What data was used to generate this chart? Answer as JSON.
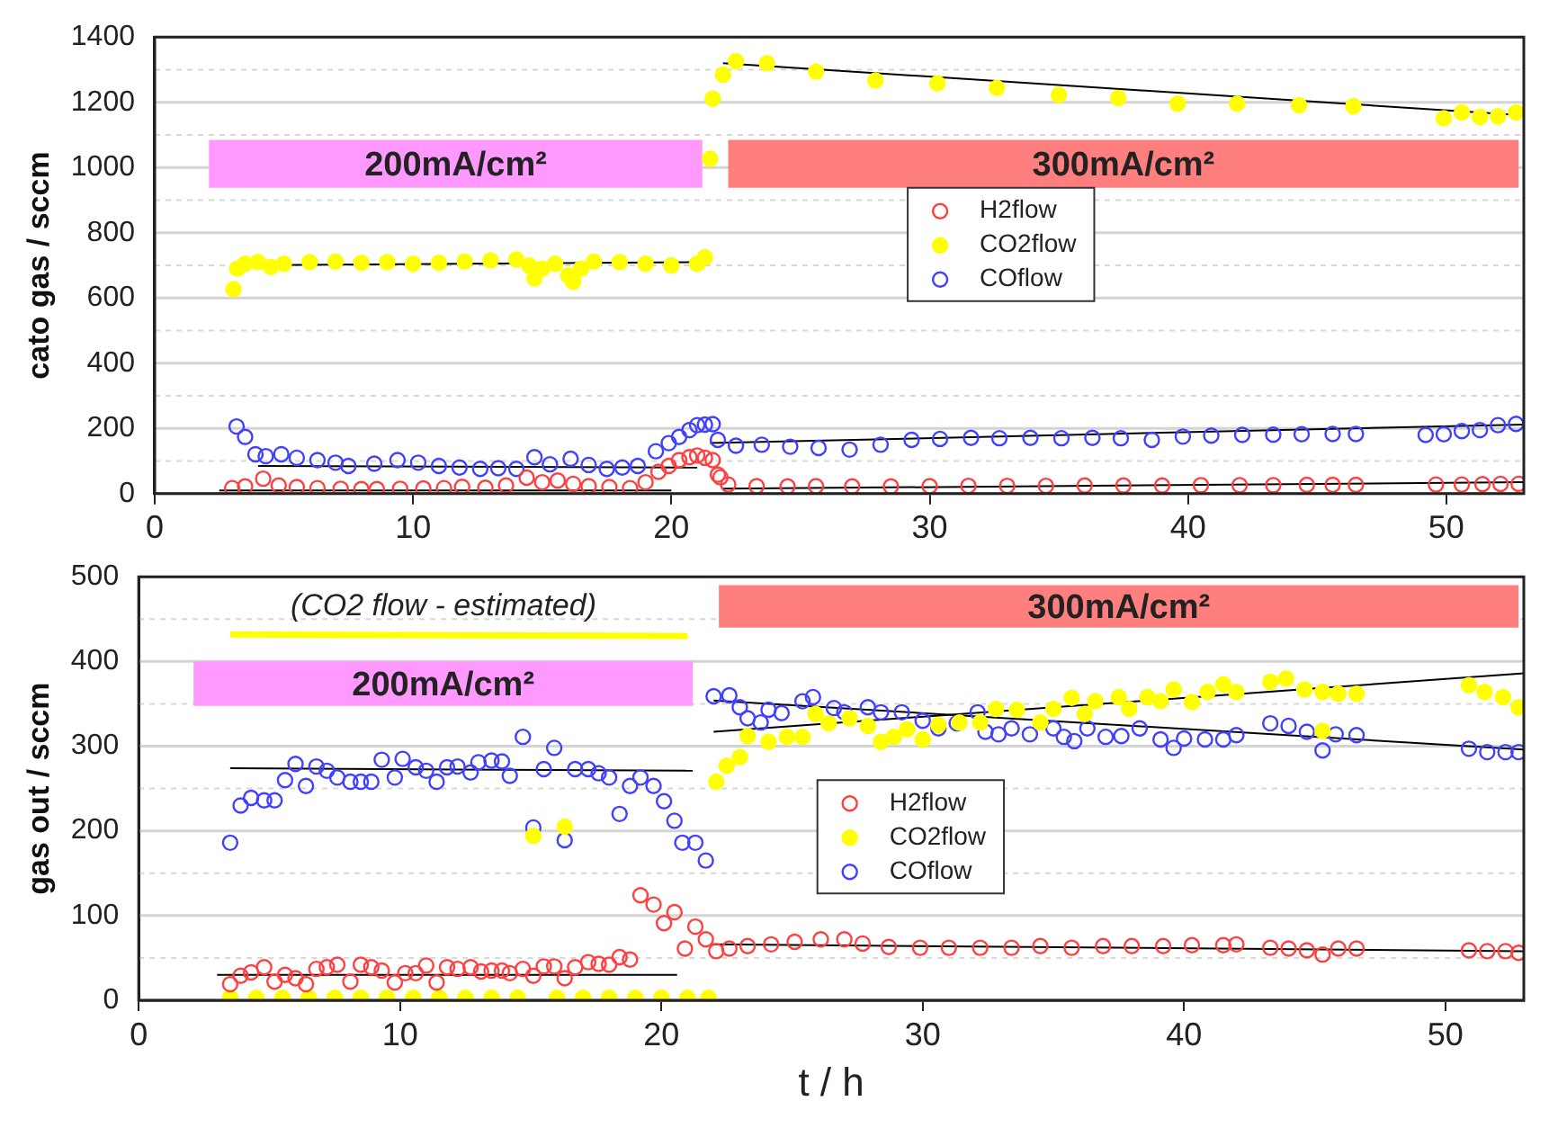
{
  "chart_data": [
    {
      "type": "scatter",
      "ylabel": "cato gas / sccm",
      "xlim": [
        0,
        53
      ],
      "xticks": [
        0,
        10,
        20,
        30,
        40,
        50
      ],
      "ylim": [
        0,
        1400
      ],
      "yticks": [
        0,
        {
          "value": 100,
          "label": null
        },
        200,
        {
          "value": 300,
          "label": null
        },
        400,
        {
          "value": 500,
          "label": null
        },
        600,
        {
          "value": 700,
          "label": null
        },
        800,
        {
          "value": 900,
          "label": null
        },
        1000,
        {
          "value": 1100,
          "label": null
        },
        1200,
        {
          "value": 1300,
          "label": null
        },
        1400
      ],
      "grid": "y",
      "legend": "top",
      "bands": [
        {
          "axis": "x",
          "from": 2.1,
          "to": 21.2,
          "label": "200mA/cm²",
          "color": "#ff99ff"
        },
        {
          "axis": "x",
          "from": 22.2,
          "to": 52.8,
          "label": "300mA/cm²",
          "color": "#ff7f7f"
        }
      ],
      "series": [
        {
          "name": "H2flow",
          "color": "#ff4040",
          "marker": "circle",
          "x": [
            3.0,
            3.5,
            4.2,
            4.8,
            5.5,
            6.3,
            7.2,
            8.0,
            8.6,
            9.5,
            10.4,
            11.2,
            11.9,
            12.8,
            13.6,
            14.4,
            15.0,
            15.6,
            16.2,
            16.8,
            17.6,
            18.4,
            19.0,
            19.5,
            19.9,
            20.3,
            20.7,
            21.0,
            21.3,
            21.6,
            21.8,
            21.9,
            22.2,
            23.3,
            24.5,
            25.6,
            27.0,
            28.5,
            30.0,
            31.5,
            33.0,
            34.5,
            36.0,
            37.5,
            39.0,
            40.5,
            42.0,
            43.3,
            44.6,
            45.6,
            46.5,
            49.6,
            50.6,
            51.4,
            52.1,
            52.8
          ],
          "values": [
            17,
            22,
            46,
            25,
            20,
            17,
            15,
            14,
            14,
            15,
            16,
            17,
            21,
            18,
            25,
            49,
            35,
            40,
            30,
            23,
            20,
            17,
            35,
            67,
            85,
            103,
            112,
            117,
            110,
            103,
            58,
            50,
            28,
            23,
            22,
            23,
            22,
            22,
            23,
            24,
            24,
            24,
            25,
            25,
            25,
            26,
            26,
            26,
            27,
            27,
            27,
            28,
            28,
            29,
            30,
            30
          ]
        },
        {
          "name": "CO2flow",
          "color": "#ffff00",
          "marker": "circle",
          "x": [
            3.05,
            3.2,
            3.5,
            4.0,
            4.5,
            5.0,
            6.0,
            7.0,
            8.0,
            9.0,
            10.0,
            11.0,
            12.0,
            13.0,
            14.0,
            14.5,
            14.7,
            15.0,
            15.5,
            16.0,
            16.2,
            16.5,
            17.0,
            18.0,
            19.0,
            20.0,
            21.0,
            21.3,
            21.5,
            21.6,
            22.0,
            22.5,
            23.7,
            25.6,
            27.9,
            30.3,
            32.6,
            35.0,
            37.3,
            39.6,
            41.9,
            44.3,
            46.4,
            49.9,
            50.6,
            51.3,
            52.0,
            52.7
          ],
          "values": [
            627,
            690,
            705,
            710,
            695,
            705,
            710,
            712,
            708,
            710,
            705,
            708,
            712,
            715,
            718,
            700,
            660,
            690,
            705,
            670,
            650,
            690,
            712,
            710,
            705,
            700,
            705,
            725,
            1027,
            1211,
            1285,
            1326,
            1320,
            1294,
            1267,
            1258,
            1244,
            1222,
            1213,
            1196,
            1196,
            1191,
            1188,
            1151,
            1169,
            1155,
            1157,
            1169
          ]
        },
        {
          "name": "COflow",
          "color": "#4040ff",
          "marker": "circle",
          "x": [
            3.17,
            3.5,
            3.9,
            4.3,
            4.9,
            5.5,
            6.3,
            7.0,
            7.5,
            8.5,
            9.4,
            10.2,
            11.0,
            11.8,
            12.6,
            13.3,
            14.0,
            14.7,
            15.3,
            16.1,
            16.8,
            17.5,
            18.1,
            18.7,
            19.4,
            19.9,
            20.3,
            20.7,
            21.0,
            21.3,
            21.6,
            21.8,
            22.5,
            23.5,
            24.6,
            25.7,
            26.9,
            28.1,
            29.3,
            30.4,
            31.6,
            32.7,
            33.9,
            35.1,
            36.3,
            37.4,
            38.6,
            39.8,
            40.9,
            42.1,
            43.3,
            44.4,
            45.6,
            46.5,
            49.2,
            49.9,
            50.6,
            51.3,
            52.0,
            52.7
          ],
          "values": [
            206,
            174,
            121,
            115,
            121,
            110,
            103,
            95,
            85,
            92,
            103,
            95,
            85,
            80,
            76,
            78,
            76,
            112,
            90,
            107,
            88,
            76,
            80,
            85,
            130,
            155,
            174,
            195,
            210,
            212,
            213,
            165,
            147,
            150,
            144,
            140,
            135,
            150,
            165,
            168,
            171,
            170,
            171,
            170,
            171,
            170,
            165,
            175,
            178,
            180,
            181,
            182,
            183,
            183,
            180,
            182,
            192,
            195,
            210,
            214
          ]
        },
        {
          "type": "line",
          "color": "#000000",
          "x": [
            3.0,
            21.5
          ],
          "values": [
            700,
            710
          ]
        },
        {
          "type": "line",
          "color": "#000000",
          "x": [
            22.0,
            53.0
          ],
          "values": [
            1320,
            1160
          ]
        },
        {
          "type": "line",
          "color": "#000000",
          "x": [
            4.0,
            21.0
          ],
          "values": [
            85,
            80
          ]
        },
        {
          "type": "line",
          "color": "#000000",
          "x": [
            21.5,
            53.0
          ],
          "values": [
            155,
            212
          ]
        },
        {
          "type": "line",
          "color": "#000000",
          "x": [
            2.5,
            20.0
          ],
          "values": [
            10,
            10
          ]
        },
        {
          "type": "line",
          "color": "#000000",
          "x": [
            22.0,
            53.0
          ],
          "values": [
            15,
            35
          ]
        }
      ]
    },
    {
      "type": "scatter",
      "xlabel": "t / h",
      "ylabel": "gas out / sccm",
      "xlim": [
        0,
        53
      ],
      "xticks": [
        0,
        10,
        20,
        30,
        40,
        50
      ],
      "ylim": [
        0,
        500
      ],
      "yticks": [
        0,
        {
          "value": 50,
          "label": null
        },
        100,
        {
          "value": 150,
          "label": null
        },
        200,
        {
          "value": 250,
          "label": null
        },
        300,
        {
          "value": 350,
          "label": null
        },
        400,
        {
          "value": 450,
          "label": null
        },
        500
      ],
      "grid": "y",
      "legend": "center",
      "annotations": [
        "(CO2 flow - estimated)"
      ],
      "bands": [
        {
          "axis": "x",
          "from": 2.1,
          "to": 21.2,
          "label": "200mA/cm²",
          "color": "#ff99ff"
        },
        {
          "axis": "x",
          "from": 22.2,
          "to": 52.8,
          "label": "300mA/cm²",
          "color": "#ff7f7f"
        }
      ],
      "series": [
        {
          "name": "H2flow",
          "color": "#ff4040",
          "marker": "circle",
          "x": [
            3.5,
            3.9,
            4.3,
            4.8,
            5.2,
            5.6,
            6.0,
            6.4,
            6.8,
            7.2,
            7.6,
            8.1,
            8.5,
            8.9,
            9.3,
            9.8,
            10.2,
            10.6,
            11.0,
            11.4,
            11.8,
            12.2,
            12.7,
            13.1,
            13.5,
            13.9,
            14.2,
            14.7,
            15.1,
            15.5,
            15.9,
            16.3,
            16.7,
            17.2,
            17.6,
            18.0,
            18.4,
            18.8,
            19.2,
            19.7,
            20.1,
            20.5,
            20.9,
            21.3,
            21.7,
            22.1,
            22.6,
            23.3,
            24.2,
            25.1,
            26.1,
            27.0,
            27.7,
            28.7,
            29.9,
            31.0,
            32.2,
            33.4,
            34.5,
            35.7,
            36.9,
            38.0,
            39.2,
            40.3,
            41.5,
            42.0,
            43.3,
            44.0,
            44.7,
            45.3,
            45.9,
            46.6,
            50.9,
            51.6,
            52.3,
            52.8
          ],
          "values": [
            19,
            29,
            33,
            39,
            22,
            30,
            26,
            19,
            37,
            39,
            42,
            22,
            42,
            39,
            35,
            21,
            32,
            32,
            41,
            21,
            39,
            37,
            39,
            34,
            35,
            35,
            32,
            37,
            29,
            40,
            40,
            26,
            39,
            45,
            43,
            42,
            51,
            48,
            124,
            113,
            91,
            104,
            61,
            87,
            72,
            58,
            61,
            64,
            66,
            69,
            72,
            72,
            67,
            63,
            62,
            62,
            62,
            62,
            64,
            62,
            64,
            64,
            64,
            65,
            65,
            66,
            62,
            61,
            59,
            54,
            61,
            61,
            59,
            58,
            58,
            56
          ]
        },
        {
          "name": "CO2flow",
          "color": "#ffff00",
          "marker": "circle",
          "x": [
            3.5,
            4.5,
            5.5,
            6.5,
            7.5,
            8.5,
            9.5,
            10.5,
            11.5,
            12.5,
            13.5,
            14.5,
            15.1,
            16.0,
            16.3,
            17.0,
            18.0,
            19.0,
            20.0,
            21.0,
            21.8,
            22.1,
            22.5,
            23.0,
            23.3,
            24.1,
            24.8,
            25.4,
            25.9,
            26.4,
            27.2,
            27.9,
            28.4,
            28.9,
            29.4,
            30.0,
            30.6,
            31.4,
            32.2,
            32.8,
            33.6,
            34.5,
            35.0,
            35.7,
            36.2,
            36.6,
            37.5,
            37.9,
            38.6,
            39.1,
            39.6,
            40.3,
            40.9,
            41.5,
            42.0,
            43.3,
            43.9,
            44.6,
            45.3,
            45.3,
            45.9,
            46.6,
            50.9,
            51.5,
            52.2,
            52.8
          ],
          "values": [
            3,
            3,
            3,
            3,
            3,
            3,
            3,
            3,
            3,
            3,
            3,
            3,
            194,
            3,
            205,
            3,
            3,
            3,
            3,
            3,
            3,
            258,
            277,
            287,
            312,
            305,
            311,
            311,
            338,
            327,
            333,
            324,
            305,
            311,
            320,
            308,
            325,
            328,
            328,
            344,
            343,
            328,
            344,
            357,
            338,
            353,
            358,
            344,
            358,
            353,
            367,
            352,
            364,
            373,
            364,
            376,
            380,
            367,
            364,
            318,
            362,
            362,
            372,
            364,
            358,
            346
          ]
        },
        {
          "name": "COflow",
          "color": "#4040ff",
          "marker": "circle",
          "x": [
            3.5,
            3.9,
            4.3,
            4.8,
            5.2,
            5.6,
            6.0,
            6.4,
            6.8,
            7.2,
            7.6,
            8.1,
            8.5,
            8.9,
            9.3,
            9.8,
            10.1,
            10.6,
            11.0,
            11.4,
            11.8,
            12.2,
            12.7,
            13.0,
            13.5,
            13.9,
            14.2,
            14.7,
            15.1,
            15.5,
            15.9,
            16.3,
            16.7,
            17.2,
            17.6,
            18.0,
            18.4,
            18.8,
            19.2,
            19.7,
            20.1,
            20.5,
            20.8,
            21.3,
            21.7,
            22.0,
            22.6,
            23.0,
            23.3,
            23.8,
            24.1,
            24.6,
            25.4,
            25.8,
            26.6,
            27.0,
            27.9,
            28.4,
            29.2,
            30.0,
            30.6,
            31.3,
            32.1,
            32.4,
            32.9,
            33.4,
            34.1,
            35.0,
            35.4,
            35.8,
            36.3,
            37.0,
            37.6,
            38.3,
            39.1,
            39.6,
            40.0,
            40.8,
            41.5,
            42.0,
            43.3,
            44.0,
            44.7,
            45.3,
            45.8,
            46.6,
            50.9,
            51.6,
            52.3,
            52.8
          ],
          "values": [
            186,
            230,
            239,
            236,
            236,
            260,
            279,
            253,
            276,
            271,
            263,
            258,
            258,
            258,
            284,
            263,
            285,
            275,
            271,
            258,
            275,
            276,
            269,
            281,
            283,
            282,
            265,
            311,
            204,
            273,
            298,
            189,
            273,
            273,
            268,
            263,
            220,
            253,
            263,
            253,
            235,
            212,
            186,
            186,
            165,
            359,
            360,
            346,
            333,
            328,
            343,
            339,
            353,
            358,
            345,
            340,
            346,
            340,
            340,
            330,
            321,
            327,
            340,
            317,
            314,
            321,
            314,
            321,
            311,
            306,
            321,
            311,
            312,
            321,
            308,
            298,
            309,
            308,
            308,
            313,
            327,
            324,
            317,
            295,
            314,
            313,
            297,
            293,
            293,
            293
          ]
        },
        {
          "type": "line",
          "color": "#ffff00",
          "x": [
            3.5,
            21.0
          ],
          "values": [
            432,
            430
          ]
        },
        {
          "type": "line",
          "color": "#000000",
          "x": [
            3.5,
            21.2
          ],
          "values": [
            274,
            271
          ]
        },
        {
          "type": "line",
          "color": "#000000",
          "x": [
            3.0,
            20.6
          ],
          "values": [
            30,
            30
          ]
        },
        {
          "type": "line",
          "color": "#000000",
          "x": [
            22.0,
            53.0
          ],
          "values": [
            317,
            386
          ]
        },
        {
          "type": "line",
          "color": "#000000",
          "x": [
            22.0,
            53.0
          ],
          "values": [
            354,
            296
          ]
        },
        {
          "type": "line",
          "color": "#000000",
          "x": [
            21.9,
            53.0
          ],
          "values": [
            66,
            58
          ]
        }
      ]
    }
  ]
}
